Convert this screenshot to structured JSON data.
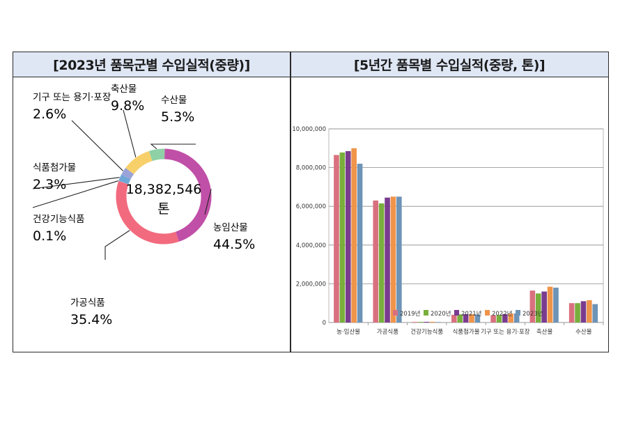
{
  "left_title": "[2023년 품목군별 수입실적(중량)]",
  "right_title": "[5년간 품목별 수입실적(중량, 톤)]",
  "chart_data": [
    {
      "type": "pie",
      "title": "[2023년 품목군별 수입실적(중량)]",
      "center_value": "18,382,546",
      "center_unit": "톤",
      "slices": [
        {
          "label": "농임산물",
          "value": 44.5,
          "display": "44.5%",
          "color": "#c04fa7"
        },
        {
          "label": "가공식품",
          "value": 35.4,
          "display": "35.4%",
          "color": "#f26a7e"
        },
        {
          "label": "건강기능식품",
          "value": 0.1,
          "display": "0.1%",
          "color": "#e07c88"
        },
        {
          "label": "식품첨가물",
          "value": 2.3,
          "display": "2.3%",
          "color": "#6fa7d6"
        },
        {
          "label": "기구 또는 용기·포장",
          "value": 2.6,
          "display": "2.6%",
          "color": "#9aa3d8"
        },
        {
          "label": "축산물",
          "value": 9.8,
          "display": "9.8%",
          "color": "#f8d06a"
        },
        {
          "label": "수산물",
          "value": 5.3,
          "display": "5.3%",
          "color": "#8ed1a6"
        }
      ]
    },
    {
      "type": "bar",
      "title": "[5년간 품목별 수입실적(중량, 톤)]",
      "categories": [
        "농·임산물",
        "가공식품",
        "건강기능식품",
        "식품첨가물",
        "기구 또는 용기·포장",
        "축산물",
        "수산물"
      ],
      "yticks": [
        "10,000,000",
        "8,000,000",
        "6,000,000",
        "4,000,000",
        "2,000,000",
        "0"
      ],
      "ylim": [
        0,
        10000000
      ],
      "grid": true,
      "legend_position": "bottom",
      "series": [
        {
          "name": "2019년",
          "color": "#d9707f",
          "values": [
            8650000,
            6300000,
            30000,
            400000,
            380000,
            1650000,
            1000000
          ]
        },
        {
          "name": "2020년",
          "color": "#79ae3c",
          "values": [
            8780000,
            6150000,
            32000,
            420000,
            390000,
            1500000,
            1000000
          ]
        },
        {
          "name": "2021년",
          "color": "#7a3b8f",
          "values": [
            8850000,
            6450000,
            35000,
            430000,
            430000,
            1600000,
            1100000
          ]
        },
        {
          "name": "2022년",
          "color": "#f0944a",
          "values": [
            9000000,
            6500000,
            38000,
            430000,
            460000,
            1850000,
            1150000
          ]
        },
        {
          "name": "2023년",
          "color": "#6d93b6",
          "values": [
            8200000,
            6500000,
            25000,
            420000,
            470000,
            1800000,
            950000
          ]
        }
      ]
    }
  ]
}
